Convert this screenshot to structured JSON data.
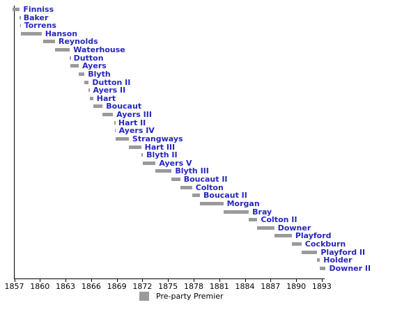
{
  "chart_data": {
    "type": "bar",
    "subtype": "gantt-timeline",
    "title": "",
    "xlabel": "",
    "ylabel": "",
    "x_axis": {
      "min": 1857,
      "max": 1893,
      "ticks": [
        1857,
        1860,
        1863,
        1866,
        1869,
        1872,
        1875,
        1878,
        1881,
        1884,
        1887,
        1890,
        1893
      ],
      "tick_labels": [
        "1857",
        "1860",
        "1863",
        "1866",
        "1869",
        "1872",
        "1875",
        "1878",
        "1881",
        "1884",
        "1887",
        "1890",
        "1893"
      ]
    },
    "legend": [
      {
        "label": "Pre-party Premier",
        "color": "#9a9a9a"
      }
    ],
    "colors": {
      "bar": "#9a9a9a",
      "name_label": "#2626bb",
      "axis": "#000000"
    },
    "series": [
      {
        "name": "Finniss",
        "start": 1856.81,
        "end": 1857.64
      },
      {
        "name": "Baker",
        "start": 1857.64,
        "end": 1857.67
      },
      {
        "name": "Torrens",
        "start": 1857.67,
        "end": 1857.75
      },
      {
        "name": "Hanson",
        "start": 1857.75,
        "end": 1860.2
      },
      {
        "name": "Reynolds",
        "start": 1860.35,
        "end": 1861.77
      },
      {
        "name": "Waterhouse",
        "start": 1861.77,
        "end": 1863.5
      },
      {
        "name": "Dutton",
        "start": 1863.5,
        "end": 1863.54
      },
      {
        "name": "Ayers",
        "start": 1863.54,
        "end": 1864.55
      },
      {
        "name": "Blyth",
        "start": 1864.55,
        "end": 1865.22
      },
      {
        "name": "Dutton II",
        "start": 1865.22,
        "end": 1865.72
      },
      {
        "name": "Ayers II",
        "start": 1865.72,
        "end": 1865.81
      },
      {
        "name": "Hart",
        "start": 1865.81,
        "end": 1866.24
      },
      {
        "name": "Boucaut",
        "start": 1866.24,
        "end": 1867.34
      },
      {
        "name": "Ayers III",
        "start": 1867.34,
        "end": 1868.55
      },
      {
        "name": "Hart II",
        "start": 1868.73,
        "end": 1868.78
      },
      {
        "name": "Ayers IV",
        "start": 1868.78,
        "end": 1868.84
      },
      {
        "name": "Strangways",
        "start": 1868.84,
        "end": 1870.41
      },
      {
        "name": "Hart III",
        "start": 1870.41,
        "end": 1871.86
      },
      {
        "name": "Blyth II",
        "start": 1871.86,
        "end": 1872.06
      },
      {
        "name": "Ayers V",
        "start": 1872.06,
        "end": 1873.55
      },
      {
        "name": "Blyth III",
        "start": 1873.55,
        "end": 1875.42
      },
      {
        "name": "Boucaut II",
        "start": 1875.42,
        "end": 1876.43
      },
      {
        "name": "Colton",
        "start": 1876.43,
        "end": 1877.82
      },
      {
        "name": "Boucaut II",
        "start": 1877.82,
        "end": 1878.74
      },
      {
        "name": "Morgan",
        "start": 1878.74,
        "end": 1881.48
      },
      {
        "name": "Bray",
        "start": 1881.48,
        "end": 1884.46
      },
      {
        "name": "Colton II",
        "start": 1884.46,
        "end": 1885.46
      },
      {
        "name": "Downer",
        "start": 1885.46,
        "end": 1887.44
      },
      {
        "name": "Playford",
        "start": 1887.44,
        "end": 1889.49
      },
      {
        "name": "Cockburn",
        "start": 1889.49,
        "end": 1890.63
      },
      {
        "name": "Playford II",
        "start": 1890.63,
        "end": 1892.47
      },
      {
        "name": "Holder",
        "start": 1892.47,
        "end": 1892.79
      },
      {
        "name": "Downer II",
        "start": 1892.79,
        "end": 1893.46
      }
    ]
  }
}
